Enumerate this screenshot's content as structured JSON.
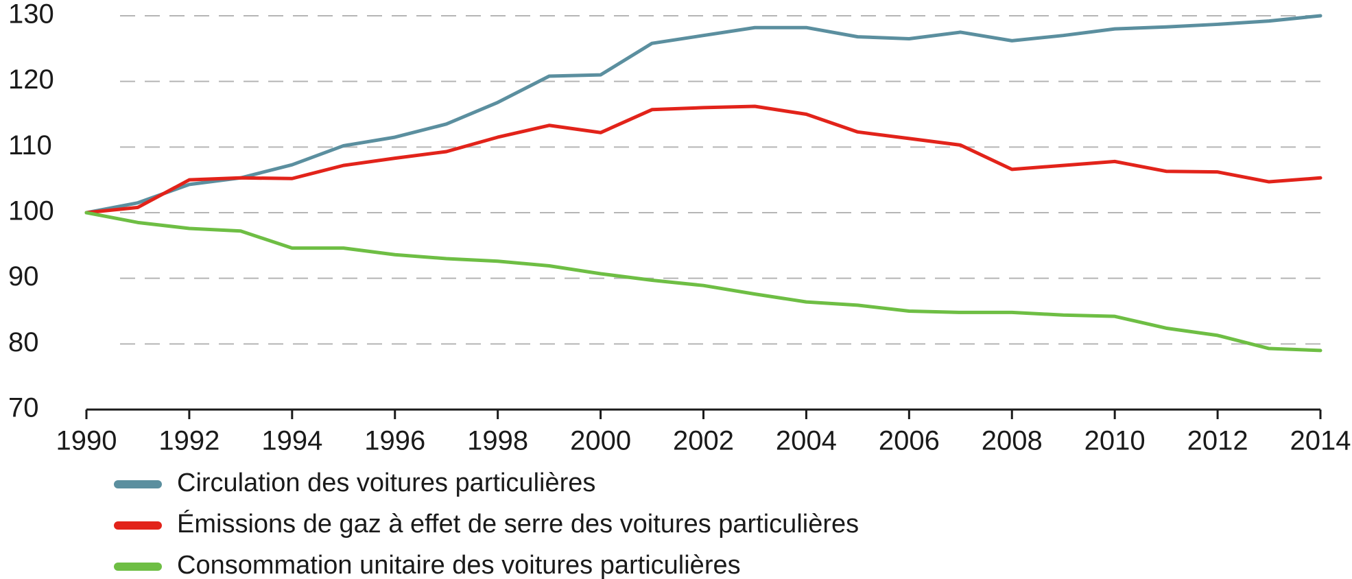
{
  "chart_data": {
    "type": "line",
    "x": [
      1990,
      1991,
      1992,
      1993,
      1994,
      1995,
      1996,
      1997,
      1998,
      1999,
      2000,
      2001,
      2002,
      2003,
      2004,
      2005,
      2006,
      2007,
      2008,
      2009,
      2010,
      2011,
      2012,
      2013,
      2014
    ],
    "series": [
      {
        "name": "Circulation des voitures particulières",
        "color": "#5b8f9f",
        "values": [
          100,
          101.5,
          104.3,
          105.3,
          107.3,
          110.2,
          111.5,
          113.5,
          116.8,
          120.8,
          121,
          125.8,
          127,
          128.2,
          128.2,
          126.8,
          126.5,
          127.5,
          126.2,
          127,
          128,
          128.3,
          128.7,
          129.2,
          130
        ]
      },
      {
        "name": "Émissions de gaz à effet de serre des voitures particulières",
        "color": "#e2231a",
        "values": [
          100,
          100.8,
          105,
          105.3,
          105.2,
          107.2,
          108.3,
          109.3,
          111.5,
          113.3,
          112.2,
          115.7,
          116,
          116.2,
          115,
          112.3,
          111.3,
          110.3,
          106.6,
          107.2,
          107.8,
          106.3,
          106.2,
          104.7,
          105.3
        ]
      },
      {
        "name": "Consommation unitaire des voitures particulières",
        "color": "#6ebe44",
        "values": [
          100,
          98.5,
          97.6,
          97.2,
          94.6,
          94.6,
          93.6,
          93,
          92.6,
          91.9,
          90.7,
          89.7,
          88.9,
          87.6,
          86.4,
          85.9,
          85,
          84.8,
          84.8,
          84.4,
          84.2,
          82.4,
          81.3,
          79.3,
          79
        ]
      }
    ],
    "xlim": [
      1990,
      2014
    ],
    "xticks": [
      1990,
      1992,
      1994,
      1996,
      1998,
      2000,
      2002,
      2004,
      2006,
      2008,
      2010,
      2012,
      2014
    ],
    "ylim": [
      70,
      130
    ],
    "yticks": [
      70,
      80,
      90,
      100,
      110,
      120,
      130
    ],
    "grid": true
  }
}
